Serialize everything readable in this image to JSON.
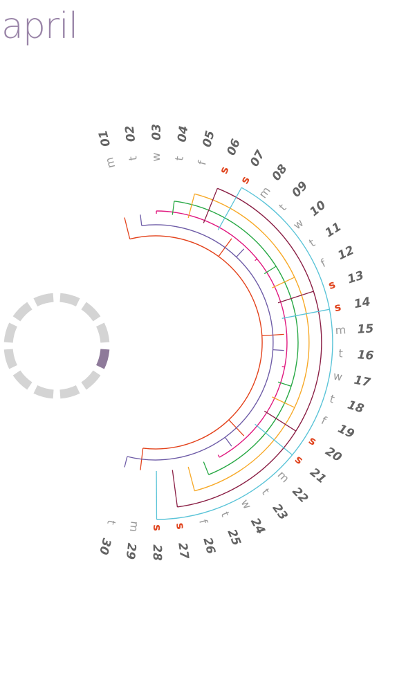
{
  "month_title": "april",
  "colors": {
    "title": "#9a85a8",
    "day_number": "#636363",
    "weekday": "#9a9a9a",
    "weekend": "#e0451f",
    "ring_segment": "#d4d4d4",
    "ring_highlight": "#8e7a9a"
  },
  "weekday_colors": {
    "m": "#e3421b",
    "t_tue": "#6e5ca7",
    "w": "#e0187f",
    "t_thu": "#27a844",
    "f": "#f7a928",
    "s_sat": "#8a1f45",
    "s_sun": "#5bc4d8"
  },
  "days": [
    {
      "num": "01",
      "wd": "m",
      "weekend": false
    },
    {
      "num": "02",
      "wd": "t",
      "weekend": false
    },
    {
      "num": "03",
      "wd": "w",
      "weekend": false
    },
    {
      "num": "04",
      "wd": "t",
      "weekend": false
    },
    {
      "num": "05",
      "wd": "f",
      "weekend": false
    },
    {
      "num": "06",
      "wd": "s",
      "weekend": true
    },
    {
      "num": "07",
      "wd": "s",
      "weekend": true
    },
    {
      "num": "08",
      "wd": "m",
      "weekend": false
    },
    {
      "num": "09",
      "wd": "t",
      "weekend": false
    },
    {
      "num": "10",
      "wd": "w",
      "weekend": false
    },
    {
      "num": "11",
      "wd": "t",
      "weekend": false
    },
    {
      "num": "12",
      "wd": "f",
      "weekend": false
    },
    {
      "num": "13",
      "wd": "s",
      "weekend": true
    },
    {
      "num": "14",
      "wd": "s",
      "weekend": true
    },
    {
      "num": "15",
      "wd": "m",
      "weekend": false
    },
    {
      "num": "16",
      "wd": "t",
      "weekend": false
    },
    {
      "num": "17",
      "wd": "w",
      "weekend": false
    },
    {
      "num": "18",
      "wd": "t",
      "weekend": false
    },
    {
      "num": "19",
      "wd": "f",
      "weekend": false
    },
    {
      "num": "20",
      "wd": "s",
      "weekend": true
    },
    {
      "num": "21",
      "wd": "s",
      "weekend": true
    },
    {
      "num": "22",
      "wd": "m",
      "weekend": false
    },
    {
      "num": "23",
      "wd": "t",
      "weekend": false
    },
    {
      "num": "24",
      "wd": "w",
      "weekend": false
    },
    {
      "num": "25",
      "wd": "t",
      "weekend": false
    },
    {
      "num": "26",
      "wd": "f",
      "weekend": false
    },
    {
      "num": "27",
      "wd": "s",
      "weekend": true
    },
    {
      "num": "28",
      "wd": "s",
      "weekend": true
    },
    {
      "num": "29",
      "wd": "m",
      "weekend": false
    },
    {
      "num": "30",
      "wd": "t",
      "weekend": false
    }
  ],
  "year_ring": {
    "segments": 12,
    "highlighted_index": 3
  }
}
